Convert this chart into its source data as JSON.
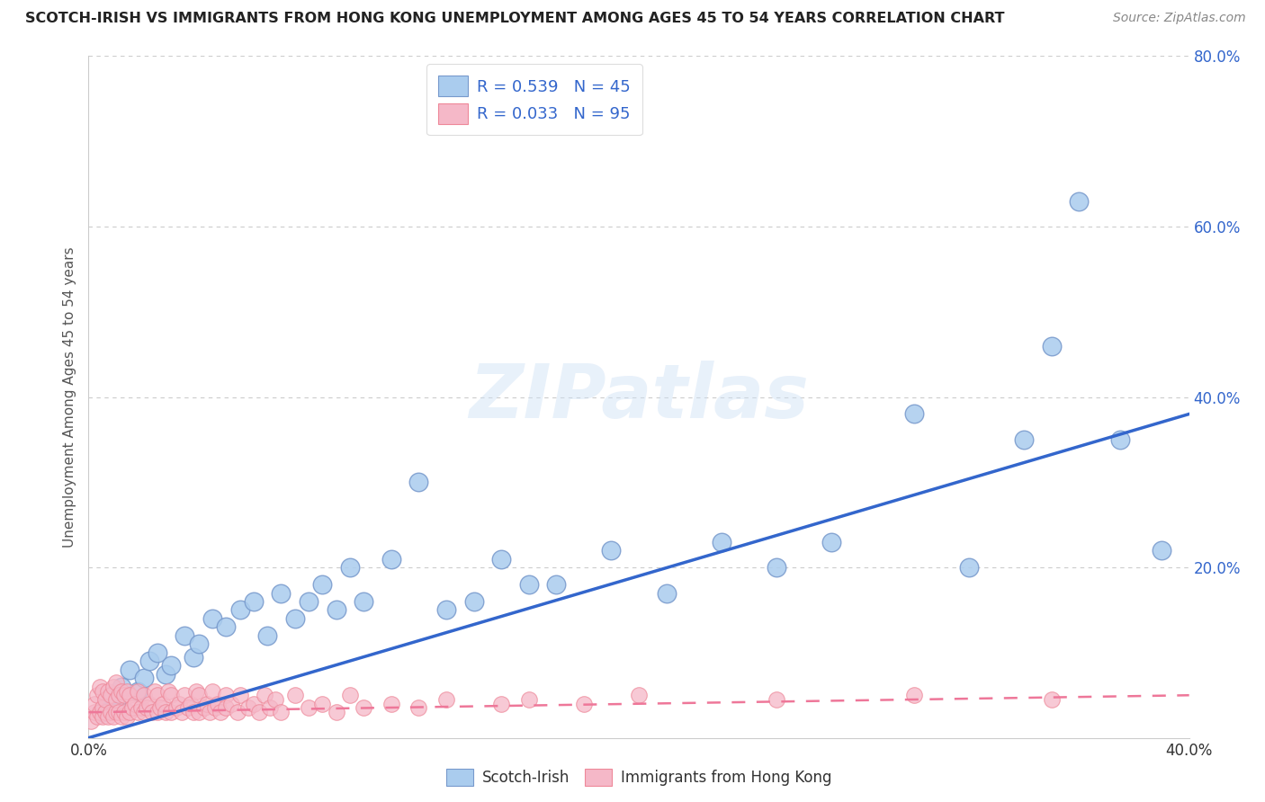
{
  "title": "SCOTCH-IRISH VS IMMIGRANTS FROM HONG KONG UNEMPLOYMENT AMONG AGES 45 TO 54 YEARS CORRELATION CHART",
  "source": "Source: ZipAtlas.com",
  "ylabel": "Unemployment Among Ages 45 to 54 years",
  "xlim": [
    0.0,
    0.4
  ],
  "ylim": [
    0.0,
    0.8
  ],
  "xticks": [
    0.0,
    0.05,
    0.1,
    0.15,
    0.2,
    0.25,
    0.3,
    0.35,
    0.4
  ],
  "xticklabels": [
    "0.0%",
    "",
    "",
    "",
    "",
    "",
    "",
    "",
    "40.0%"
  ],
  "yticks": [
    0.0,
    0.2,
    0.4,
    0.6,
    0.8
  ],
  "yticklabels": [
    "",
    "20.0%",
    "40.0%",
    "60.0%",
    "80.0%"
  ],
  "background_color": "#ffffff",
  "grid_color": "#cccccc",
  "scotch_irish_fill": "#aaccee",
  "scotch_irish_edge": "#7799cc",
  "hong_kong_fill": "#f5b8c8",
  "hong_kong_edge": "#ee8899",
  "blue_line_color": "#3366cc",
  "pink_line_color": "#ee7799",
  "legend_text_color": "#3366cc",
  "legend_r1": "R = 0.539",
  "legend_n1": "N = 45",
  "legend_r2": "R = 0.033",
  "legend_n2": "N = 95",
  "scotch_irish_label": "Scotch-Irish",
  "hong_kong_label": "Immigrants from Hong Kong",
  "scotch_irish_x": [
    0.005,
    0.008,
    0.01,
    0.012,
    0.015,
    0.018,
    0.02,
    0.022,
    0.025,
    0.028,
    0.03,
    0.035,
    0.038,
    0.04,
    0.045,
    0.05,
    0.055,
    0.06,
    0.065,
    0.07,
    0.075,
    0.08,
    0.085,
    0.09,
    0.095,
    0.1,
    0.11,
    0.12,
    0.13,
    0.14,
    0.15,
    0.16,
    0.17,
    0.19,
    0.21,
    0.23,
    0.25,
    0.27,
    0.3,
    0.32,
    0.34,
    0.35,
    0.36,
    0.375,
    0.39
  ],
  "scotch_irish_y": [
    0.03,
    0.05,
    0.04,
    0.06,
    0.08,
    0.055,
    0.07,
    0.09,
    0.1,
    0.075,
    0.085,
    0.12,
    0.095,
    0.11,
    0.14,
    0.13,
    0.15,
    0.16,
    0.12,
    0.17,
    0.14,
    0.16,
    0.18,
    0.15,
    0.2,
    0.16,
    0.21,
    0.3,
    0.15,
    0.16,
    0.21,
    0.18,
    0.18,
    0.22,
    0.17,
    0.23,
    0.2,
    0.23,
    0.38,
    0.2,
    0.35,
    0.46,
    0.63,
    0.35,
    0.22
  ],
  "hong_kong_x": [
    0.001,
    0.002,
    0.002,
    0.003,
    0.003,
    0.004,
    0.004,
    0.005,
    0.005,
    0.005,
    0.006,
    0.006,
    0.007,
    0.007,
    0.008,
    0.008,
    0.009,
    0.009,
    0.01,
    0.01,
    0.01,
    0.011,
    0.011,
    0.012,
    0.012,
    0.013,
    0.013,
    0.014,
    0.014,
    0.015,
    0.015,
    0.016,
    0.017,
    0.018,
    0.018,
    0.019,
    0.02,
    0.02,
    0.021,
    0.022,
    0.023,
    0.024,
    0.025,
    0.025,
    0.026,
    0.027,
    0.028,
    0.029,
    0.03,
    0.03,
    0.032,
    0.033,
    0.034,
    0.035,
    0.036,
    0.037,
    0.038,
    0.039,
    0.04,
    0.04,
    0.042,
    0.043,
    0.044,
    0.045,
    0.046,
    0.047,
    0.048,
    0.05,
    0.05,
    0.052,
    0.054,
    0.055,
    0.058,
    0.06,
    0.062,
    0.064,
    0.066,
    0.068,
    0.07,
    0.075,
    0.08,
    0.085,
    0.09,
    0.095,
    0.1,
    0.11,
    0.12,
    0.13,
    0.15,
    0.16,
    0.18,
    0.2,
    0.25,
    0.3,
    0.35
  ],
  "hong_kong_y": [
    0.02,
    0.03,
    0.04,
    0.025,
    0.05,
    0.03,
    0.06,
    0.025,
    0.035,
    0.055,
    0.03,
    0.045,
    0.025,
    0.055,
    0.03,
    0.05,
    0.025,
    0.06,
    0.03,
    0.045,
    0.065,
    0.03,
    0.05,
    0.025,
    0.055,
    0.03,
    0.05,
    0.025,
    0.055,
    0.03,
    0.05,
    0.035,
    0.04,
    0.03,
    0.055,
    0.035,
    0.03,
    0.05,
    0.035,
    0.04,
    0.03,
    0.055,
    0.03,
    0.05,
    0.035,
    0.04,
    0.03,
    0.055,
    0.03,
    0.05,
    0.035,
    0.04,
    0.03,
    0.05,
    0.035,
    0.04,
    0.03,
    0.055,
    0.03,
    0.05,
    0.035,
    0.04,
    0.03,
    0.055,
    0.035,
    0.04,
    0.03,
    0.05,
    0.035,
    0.04,
    0.03,
    0.05,
    0.035,
    0.04,
    0.03,
    0.05,
    0.035,
    0.045,
    0.03,
    0.05,
    0.035,
    0.04,
    0.03,
    0.05,
    0.035,
    0.04,
    0.035,
    0.045,
    0.04,
    0.045,
    0.04,
    0.05,
    0.045,
    0.05,
    0.045
  ],
  "blue_line_start_y": 0.0,
  "blue_line_end_y": 0.38,
  "pink_line_start_y": 0.03,
  "pink_line_end_y": 0.05
}
